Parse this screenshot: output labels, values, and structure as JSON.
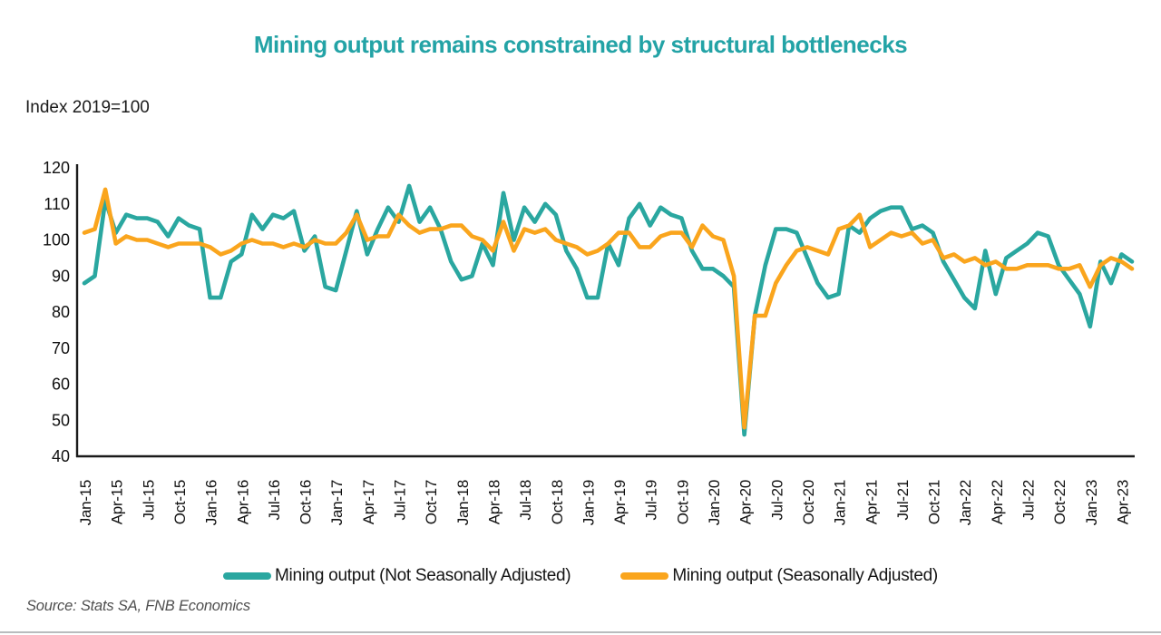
{
  "title": "Mining output remains constrained by structural bottlenecks",
  "subtitle": "Index 2019=100",
  "source": "Source: Stats SA, FNB Economics",
  "colors": {
    "title_teal": "#23a3a6",
    "series_nsa": "#2aa7a0",
    "series_sa": "#faa51d",
    "axis": "#1a1a1a"
  },
  "legend": {
    "nsa_label": "Mining output (Not Seasonally Adjusted)",
    "sa_label": "Mining output (Seasonally Adjusted)"
  },
  "chart_data": {
    "type": "line",
    "title": "Mining output remains constrained by structural bottlenecks",
    "ylabel": "Index 2019=100",
    "ylim": [
      40,
      120
    ],
    "y_tick_labels": [
      "40",
      "50",
      "60",
      "70",
      "80",
      "90",
      "100",
      "110",
      "120"
    ],
    "grid": false,
    "legend_position": "bottom",
    "x_start": "Jan-15",
    "x_end": "May-23",
    "x_tick_every": 3,
    "x_tick_labels": [
      "Jan-15",
      "Apr-15",
      "Jul-15",
      "Oct-15",
      "Jan-16",
      "Apr-16",
      "Jul-16",
      "Oct-16",
      "Jan-17",
      "Apr-17",
      "Jul-17",
      "Oct-17",
      "Jan-18",
      "Apr-18",
      "Jul-18",
      "Oct-18",
      "Jan-19",
      "Apr-19",
      "Jul-19",
      "Oct-19",
      "Jan-20",
      "Apr-20",
      "Jul-20",
      "Oct-20",
      "Jan-21",
      "Apr-21",
      "Jul-21",
      "Oct-21",
      "Jan-22",
      "Apr-22",
      "Jul-22",
      "Oct-22",
      "Jan-23",
      "Apr-23"
    ],
    "series": [
      {
        "name": "Mining output (Not Seasonally Adjusted)",
        "color": "#2aa7a0",
        "values": [
          88,
          90,
          111,
          102,
          107,
          106,
          106,
          105,
          101,
          106,
          104,
          103,
          84,
          84,
          94,
          96,
          107,
          103,
          107,
          106,
          108,
          97,
          101,
          87,
          86,
          97,
          108,
          96,
          103,
          109,
          105,
          115,
          105,
          109,
          103,
          94,
          89,
          90,
          99,
          93,
          113,
          100,
          109,
          105,
          110,
          107,
          97,
          92,
          84,
          84,
          99,
          93,
          106,
          110,
          104,
          109,
          107,
          106,
          97,
          92,
          92,
          90,
          87,
          46,
          79,
          93,
          103,
          103,
          102,
          95,
          88,
          84,
          85,
          104,
          102,
          106,
          108,
          109,
          109,
          103,
          104,
          102,
          94,
          89,
          84,
          81,
          97,
          85,
          95,
          97,
          99,
          102,
          101,
          93,
          89,
          85,
          76,
          94,
          88,
          96,
          94
        ]
      },
      {
        "name": "Mining output (Seasonally Adjusted)",
        "color": "#faa51d",
        "values": [
          102,
          103,
          114,
          99,
          101,
          100,
          100,
          99,
          98,
          99,
          99,
          99,
          98,
          96,
          97,
          99,
          100,
          99,
          99,
          98,
          99,
          98,
          100,
          99,
          99,
          102,
          107,
          100,
          101,
          101,
          107,
          104,
          102,
          103,
          103,
          104,
          104,
          101,
          100,
          97,
          105,
          97,
          103,
          102,
          103,
          100,
          99,
          98,
          96,
          97,
          99,
          102,
          102,
          98,
          98,
          101,
          102,
          102,
          98,
          104,
          101,
          100,
          90,
          48,
          79,
          79,
          88,
          93,
          97,
          98,
          97,
          96,
          103,
          104,
          107,
          98,
          100,
          102,
          101,
          102,
          99,
          100,
          95,
          96,
          94,
          95,
          93,
          94,
          92,
          92,
          93,
          93,
          93,
          92,
          92,
          93,
          87,
          93,
          95,
          94,
          92
        ]
      }
    ]
  }
}
